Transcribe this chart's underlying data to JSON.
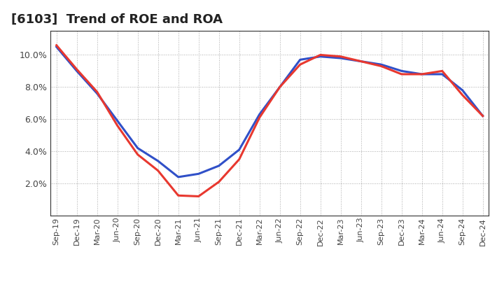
{
  "title": "[6103]  Trend of ROE and ROA",
  "labels": [
    "Sep-19",
    "Dec-19",
    "Mar-20",
    "Jun-20",
    "Sep-20",
    "Dec-20",
    "Mar-21",
    "Jun-21",
    "Sep-21",
    "Dec-21",
    "Mar-22",
    "Jun-22",
    "Sep-22",
    "Dec-22",
    "Mar-23",
    "Jun-23",
    "Sep-23",
    "Dec-23",
    "Mar-24",
    "Jun-24",
    "Sep-24",
    "Dec-24"
  ],
  "ROE": [
    10.6,
    9.1,
    7.7,
    5.6,
    3.8,
    2.8,
    1.25,
    1.2,
    2.1,
    3.5,
    6.1,
    8.0,
    9.4,
    10.0,
    9.9,
    9.6,
    9.3,
    8.8,
    8.8,
    9.0,
    7.5,
    6.2
  ],
  "ROA": [
    10.5,
    9.0,
    7.6,
    5.9,
    4.2,
    3.4,
    2.4,
    2.6,
    3.1,
    4.1,
    6.3,
    8.0,
    9.7,
    9.9,
    9.8,
    9.6,
    9.4,
    9.0,
    8.8,
    8.8,
    7.8,
    6.2
  ],
  "roe_color": "#e8382f",
  "roa_color": "#3050c8",
  "bg_color": "#ffffff",
  "plot_bg_color": "#ffffff",
  "grid_color": "#aaaaaa",
  "ylim": [
    0,
    11.5
  ],
  "yticks": [
    2.0,
    4.0,
    6.0,
    8.0,
    10.0
  ],
  "title_fontsize": 13,
  "line_width": 2.2
}
